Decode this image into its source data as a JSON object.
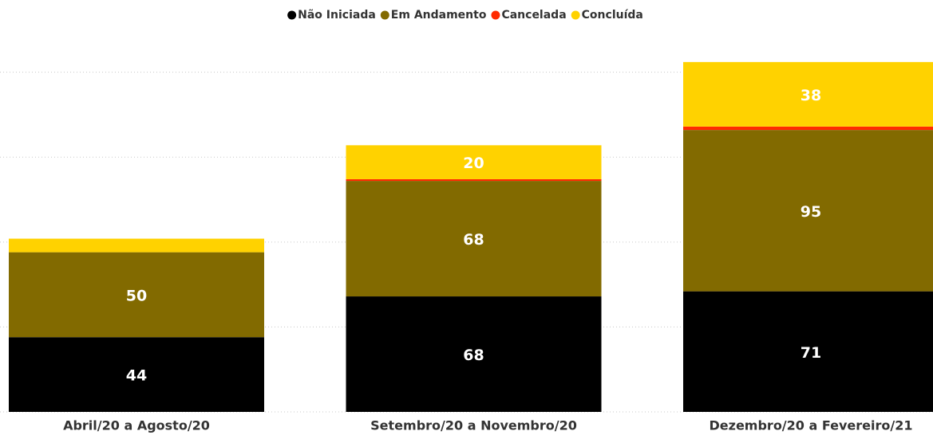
{
  "chart_data": {
    "type": "stacked_bar",
    "categories": [
      "Abril/20 a Agosto/20",
      "Setembro/20 a Novembro/20",
      "Dezembro/20 a Fevereiro/21"
    ],
    "series": [
      {
        "name": "Não Iniciada",
        "color": "#000000",
        "values": [
          44,
          68,
          71
        ]
      },
      {
        "name": "Em Andamento",
        "color": "#826a00",
        "values": [
          50,
          68,
          95
        ]
      },
      {
        "name": "Cancelada",
        "color": "#ff2a00",
        "values": [
          0,
          1,
          2
        ]
      },
      {
        "name": "Concluída",
        "color": "#ffd200",
        "values": [
          8,
          20,
          38
        ]
      }
    ],
    "ylim": [
      0,
      205
    ],
    "yticks": [
      0,
      50,
      100,
      150,
      200
    ],
    "grid": true,
    "legend": "top"
  }
}
